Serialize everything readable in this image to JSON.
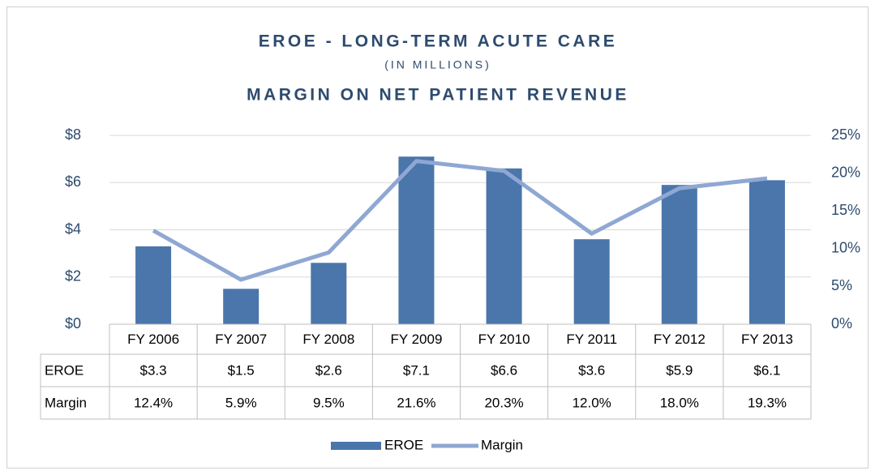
{
  "chart_data": {
    "type": "bar_line_table",
    "title": "EROE - LONG-TERM ACUTE CARE",
    "subtitle": "(IN MILLIONS)",
    "subtitle2": "MARGIN ON NET PATIENT REVENUE",
    "categories": [
      "FY 2006",
      "FY 2007",
      "FY 2008",
      "FY 2009",
      "FY 2010",
      "FY 2011",
      "FY 2012",
      "FY 2013"
    ],
    "series": [
      {
        "name": "EROE",
        "type": "bar",
        "color": "#4a76ab",
        "values": [
          3.3,
          1.5,
          2.6,
          7.1,
          6.6,
          3.6,
          5.9,
          6.1
        ],
        "value_labels": [
          "$3.3",
          "$1.5",
          "$2.6",
          "$7.1",
          "$6.6",
          "$3.6",
          "$5.9",
          "$6.1"
        ]
      },
      {
        "name": "Margin",
        "type": "line",
        "axis": "y2",
        "color": "#8fa7d3",
        "values": [
          12.4,
          5.9,
          9.5,
          21.6,
          20.3,
          12.0,
          18.0,
          19.3
        ],
        "value_labels": [
          "12.4%",
          "5.9%",
          "9.5%",
          "21.6%",
          "20.3%",
          "12.0%",
          "18.0%",
          "19.3%"
        ]
      }
    ],
    "ylim": [
      0,
      8
    ],
    "yticks": [
      {
        "value": 0,
        "label": "$0"
      },
      {
        "value": 2,
        "label": "$2"
      },
      {
        "value": 4,
        "label": "$4"
      },
      {
        "value": 6,
        "label": "$6"
      },
      {
        "value": 8,
        "label": "$8"
      }
    ],
    "y2lim": [
      0,
      25
    ],
    "y2ticks": [
      {
        "value": 0,
        "label": "0%"
      },
      {
        "value": 5,
        "label": "5%"
      },
      {
        "value": 10,
        "label": "10%"
      },
      {
        "value": 15,
        "label": "15%"
      },
      {
        "value": 20,
        "label": "20%"
      },
      {
        "value": 25,
        "label": "25%"
      }
    ],
    "grid": true,
    "legend": "bottom"
  }
}
